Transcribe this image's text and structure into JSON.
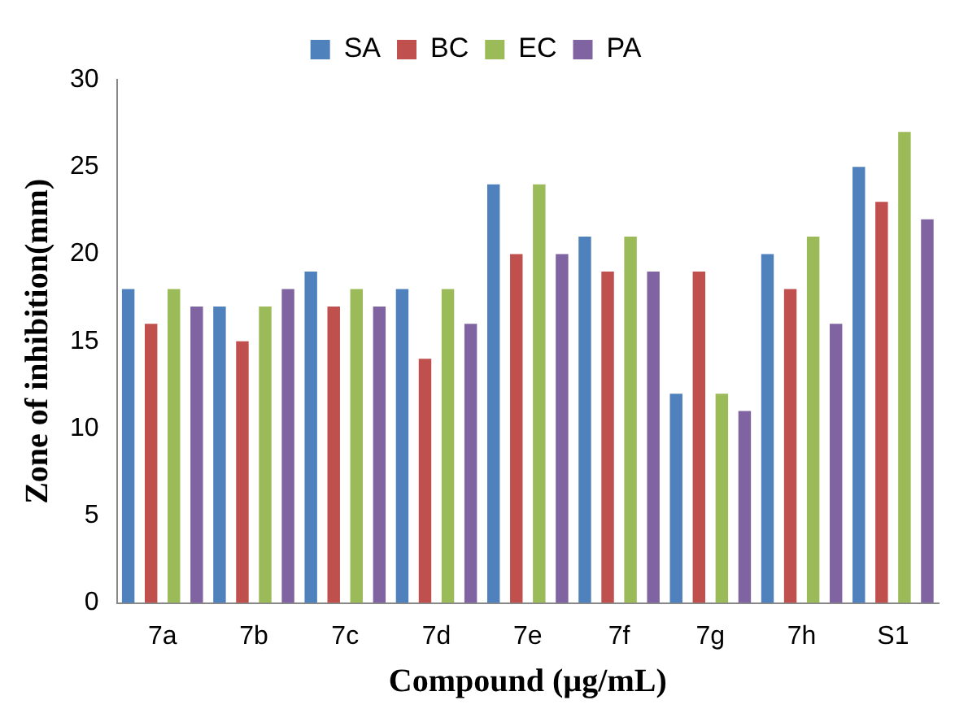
{
  "chart_data": {
    "type": "bar",
    "xlabel": "Compound (µg/mL)",
    "ylabel": "Zone of inhibition(mm)",
    "categories": [
      "7a",
      "7b",
      "7c",
      "7d",
      "7e",
      "7f",
      "7g",
      "7h",
      "S1"
    ],
    "series": [
      {
        "name": "SA",
        "color": "#4f81bd",
        "values": [
          18,
          17,
          19,
          18,
          24,
          21,
          12,
          20,
          25
        ]
      },
      {
        "name": "BC",
        "color": "#c0504d",
        "values": [
          16,
          15,
          17,
          14,
          20,
          19,
          19,
          18,
          23
        ]
      },
      {
        "name": "EC",
        "color": "#9bbb59",
        "values": [
          18,
          17,
          18,
          18,
          24,
          21,
          12,
          21,
          27
        ]
      },
      {
        "name": "PA",
        "color": "#8064a2",
        "values": [
          17,
          18,
          17,
          16,
          20,
          19,
          11,
          16,
          22
        ]
      }
    ],
    "ylim": [
      0,
      30
    ],
    "yticks": [
      0,
      5,
      10,
      15,
      20,
      25,
      30
    ],
    "grid": false,
    "legend": "top"
  }
}
